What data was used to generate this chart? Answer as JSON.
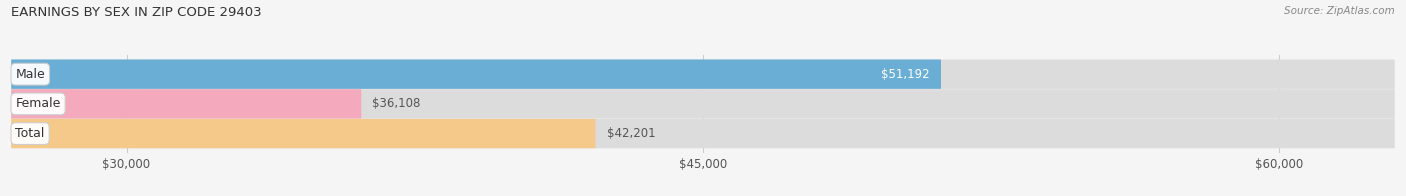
{
  "title": "EARNINGS BY SEX IN ZIP CODE 29403",
  "source": "Source: ZipAtlas.com",
  "categories": [
    "Male",
    "Female",
    "Total"
  ],
  "values": [
    51192,
    36108,
    42201
  ],
  "labels": [
    "$51,192",
    "$36,108",
    "$42,201"
  ],
  "bar_colors": [
    "#6aaed6",
    "#f4a9bc",
    "#f5c98a"
  ],
  "label_colors": [
    "#ffffff",
    "#555555",
    "#555555"
  ],
  "xmin": 27000,
  "xmax": 63000,
  "xticks": [
    30000,
    45000,
    60000
  ],
  "xtick_labels": [
    "$30,000",
    "$45,000",
    "$60,000"
  ],
  "background_color": "#f5f5f5",
  "title_fontsize": 9.5,
  "bar_height": 0.52,
  "figsize": [
    14.06,
    1.96
  ],
  "dpi": 100
}
